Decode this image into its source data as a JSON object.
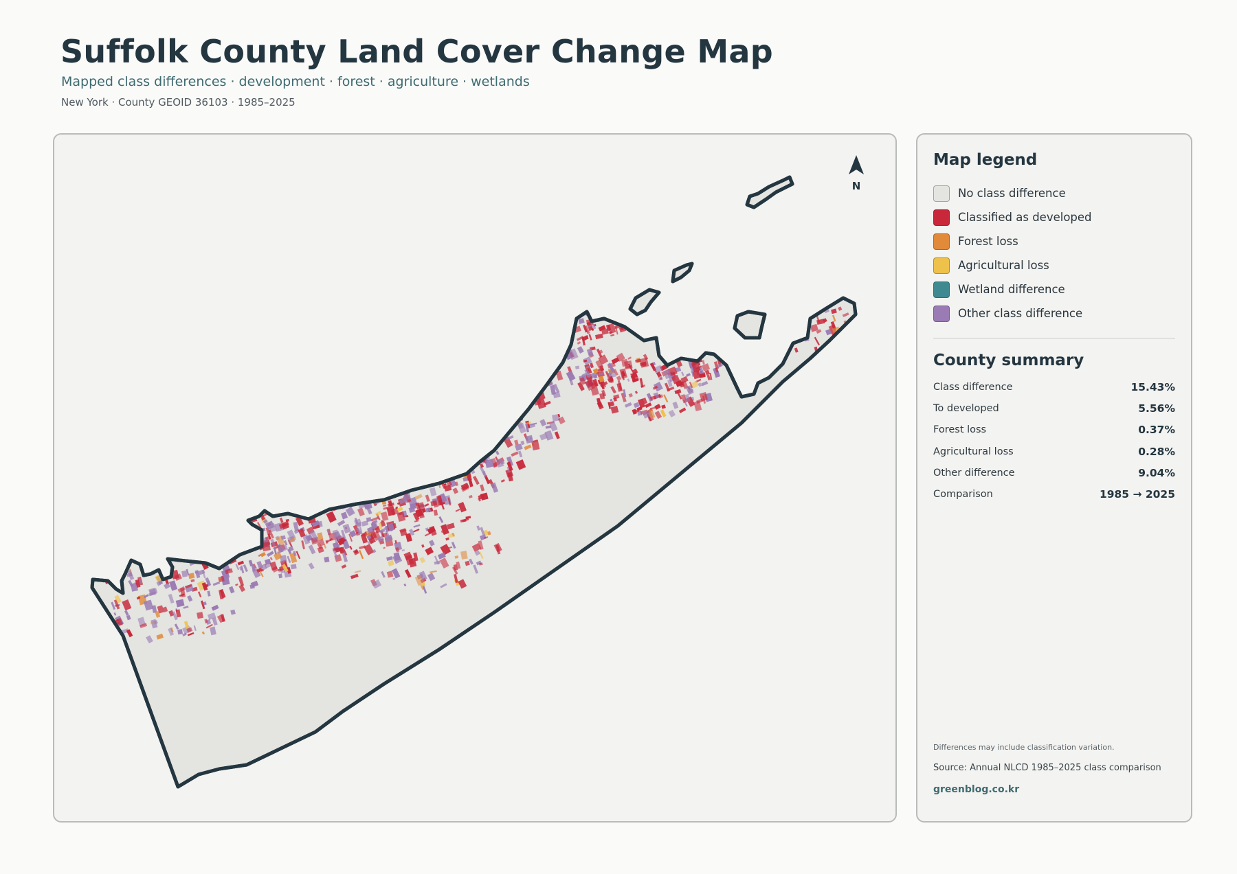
{
  "header": {
    "title": "Suffolk County Land Cover Change Map",
    "subtitle": "Mapped class differences · development · forest · agriculture · wetlands",
    "meta": "New York · County GEOID 36103 · 1985–2025"
  },
  "map": {
    "north_label": "N",
    "colors": {
      "land": "#e4e4e1",
      "outline": "#243640",
      "developed": "#c8283a",
      "forest_loss": "#e08a3a",
      "agricultural_loss": "#eec14a",
      "wetland": "#3f8a90",
      "other": "#9a7bb3"
    }
  },
  "legend": {
    "heading": "Map legend",
    "items": [
      {
        "label": "No class difference",
        "color": "#e4e4e1"
      },
      {
        "label": "Classified as developed",
        "color": "#c8283a"
      },
      {
        "label": "Forest loss",
        "color": "#e08a3a"
      },
      {
        "label": "Agricultural loss",
        "color": "#eec14a"
      },
      {
        "label": "Wetland difference",
        "color": "#3f8a90"
      },
      {
        "label": "Other class difference",
        "color": "#9a7bb3"
      }
    ]
  },
  "summary": {
    "heading": "County summary",
    "rows": [
      {
        "label": "Class difference",
        "value": "15.43%"
      },
      {
        "label": "To developed",
        "value": "5.56%"
      },
      {
        "label": "Forest loss",
        "value": "0.37%"
      },
      {
        "label": "Agricultural loss",
        "value": "0.28%"
      },
      {
        "label": "Other difference",
        "value": "9.04%"
      },
      {
        "label": "Comparison",
        "value": "1985 → 2025"
      }
    ]
  },
  "footer": {
    "note": "Differences may include classification variation.",
    "source": "Source: Annual NLCD 1985–2025 class comparison",
    "site": "greenblog.co.kr"
  }
}
